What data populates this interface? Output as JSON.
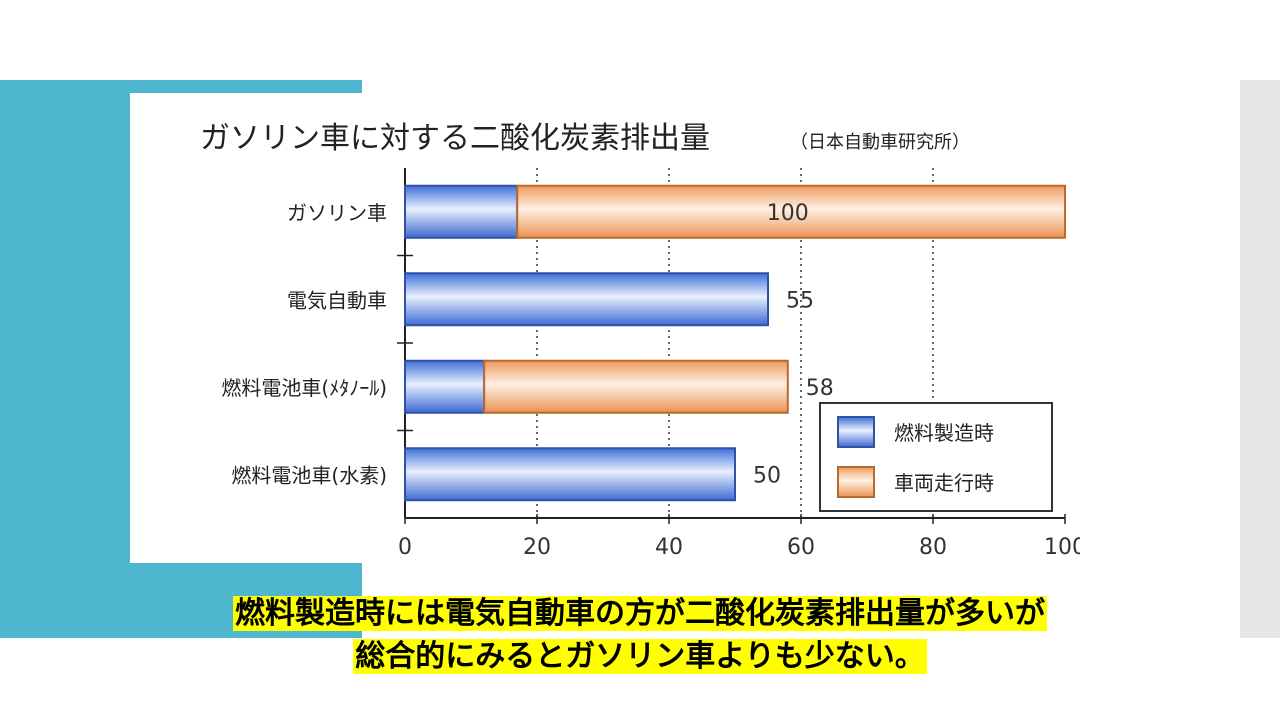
{
  "slide": {
    "caption_line1": "燃料製造時には電気自動車の方が二酸化炭素排出量が多いが",
    "caption_line2": "総合的にみるとガソリン車よりも少ない。",
    "colors": {
      "teal": "#4fb6cf",
      "gray": "#e6e6e6",
      "highlight": "#ffff00"
    }
  },
  "chart_data": {
    "type": "bar",
    "orientation": "horizontal",
    "stacked": true,
    "title": "ガソリン車に対する二酸化炭素排出量",
    "subtitle": "（日本自動車研究所）",
    "categories": [
      "ガソリン車",
      "電気自動車",
      "燃料電池車(ﾒﾀﾉｰﾙ)",
      "燃料電池車(水素)"
    ],
    "series": [
      {
        "name": "燃料製造時",
        "color": "#5b86e5",
        "values": [
          17,
          55,
          12,
          50
        ]
      },
      {
        "name": "車両走行時",
        "color": "#f4a66a",
        "values": [
          83,
          0,
          46,
          0
        ]
      }
    ],
    "totals": [
      "100",
      "55",
      "58",
      "50"
    ],
    "xlim": [
      0,
      100
    ],
    "xticks": [
      "0",
      "20",
      "40",
      "60",
      "80",
      "100"
    ],
    "grid": "vertical-dotted",
    "legend_position": "bottom-right"
  }
}
